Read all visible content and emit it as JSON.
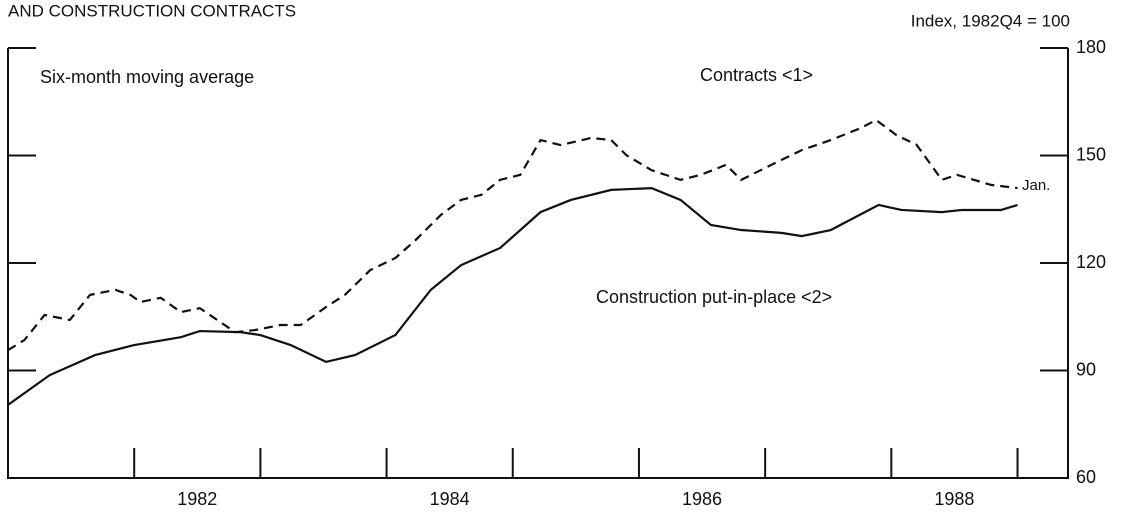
{
  "chart_data": {
    "type": "line",
    "title": "AND CONSTRUCTION CONTRACTS",
    "y_axis_label": "Index, 1982Q4 = 100",
    "subtitle": "Six-month moving average",
    "annotations": [
      "Jan."
    ],
    "series": [
      {
        "name": "Contracts <1>",
        "color": "#111",
        "dash": true,
        "x": [
          1981.0,
          1981.13,
          1981.29,
          1981.49,
          1981.65,
          1981.85,
          1981.97,
          1982.05,
          1982.21,
          1982.37,
          1982.52,
          1982.8,
          1982.96,
          1983.16,
          1983.32,
          1983.52,
          1983.67,
          1983.87,
          1984.07,
          1984.23,
          1984.43,
          1984.59,
          1984.75,
          1984.9,
          1985.06,
          1985.22,
          1985.38,
          1985.62,
          1985.78,
          1985.9,
          1986.1,
          1986.33,
          1986.49,
          1986.69,
          1986.81,
          1987.05,
          1987.29,
          1987.52,
          1987.76,
          1987.88,
          1988.04,
          1988.2,
          1988.4,
          1988.52,
          1988.79,
          1989.0
        ],
        "values": [
          95.7,
          98.5,
          105.5,
          104.1,
          111.1,
          112.5,
          111.1,
          109.1,
          110.3,
          106.3,
          107.4,
          100.7,
          101.3,
          102.7,
          102.7,
          107.7,
          111.1,
          118,
          121.4,
          126.4,
          133.4,
          137.6,
          139,
          143.2,
          144.6,
          154.3,
          152.9,
          154.9,
          154.3,
          150.1,
          145.9,
          143.2,
          144.6,
          147.4,
          143.2,
          147.4,
          151.5,
          154.3,
          157.7,
          159.9,
          155.7,
          153,
          143.2,
          144.6,
          141.8,
          140.9
        ]
      },
      {
        "name": "Construction put-in-place <2>",
        "color": "#111",
        "dash": false,
        "x": [
          1981.0,
          1981.33,
          1981.69,
          1982.0,
          1982.37,
          1982.52,
          1982.84,
          1983.0,
          1983.24,
          1983.52,
          1983.75,
          1984.07,
          1984.35,
          1984.59,
          1984.9,
          1985.22,
          1985.46,
          1985.78,
          1986.1,
          1986.33,
          1986.57,
          1986.81,
          1987.13,
          1987.29,
          1987.52,
          1987.9,
          1988.08,
          1988.4,
          1988.56,
          1988.87,
          1989.0
        ],
        "values": [
          80.4,
          88.7,
          94.3,
          97.1,
          99.3,
          101,
          100.7,
          99.9,
          97.1,
          92.4,
          94.3,
          99.9,
          112.5,
          119.4,
          124.2,
          134.2,
          137.6,
          140.4,
          140.9,
          137.6,
          130.6,
          129.2,
          128.4,
          127.5,
          129.2,
          136.2,
          134.8,
          134.2,
          134.8,
          134.8,
          136.2
        ]
      }
    ],
    "xlim": [
      1981,
      1989.4
    ],
    "xticks": [
      1982,
      1983,
      1984,
      1985,
      1986,
      1987,
      1988,
      1989
    ],
    "xtick_labels": [
      1982,
      1984,
      1986,
      1988
    ],
    "ylim": [
      60,
      180
    ],
    "yticks": [
      60,
      90,
      120,
      150,
      180
    ]
  }
}
